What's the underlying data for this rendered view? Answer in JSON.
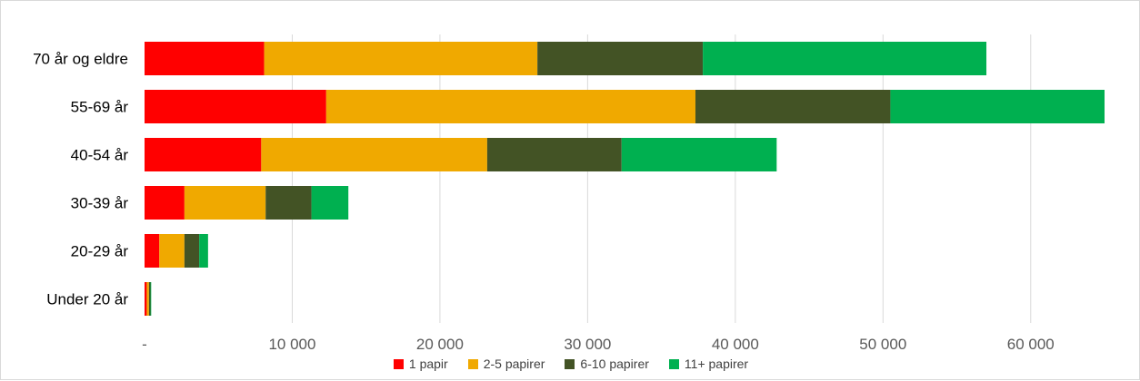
{
  "chart_data": {
    "type": "bar",
    "orientation": "horizontal",
    "stacked": true,
    "categories": [
      "70 år og eldre",
      "55-69 år",
      "40-54 år",
      "30-39 år",
      "20-29 år",
      "Under 20 år"
    ],
    "series": [
      {
        "name": "1 papir",
        "color": "#ff0000",
        "values": [
          8100,
          12300,
          7900,
          2700,
          1000,
          150
        ]
      },
      {
        "name": "2-5 papirer",
        "color": "#f0a900",
        "values": [
          18500,
          25000,
          15300,
          5500,
          1700,
          150
        ]
      },
      {
        "name": "6-10 papirer",
        "color": "#435325",
        "values": [
          11200,
          13200,
          9100,
          3100,
          1000,
          100
        ]
      },
      {
        "name": "11+ papirer",
        "color": "#00b050",
        "values": [
          19200,
          14500,
          10500,
          2500,
          600,
          50
        ]
      }
    ],
    "xlim": [
      0,
      65000
    ],
    "xticks": [
      0,
      10000,
      20000,
      30000,
      40000,
      50000,
      60000
    ],
    "xtick_labels": [
      "-",
      "10 000",
      "20 000",
      "30 000",
      "40 000",
      "50 000",
      "60 000"
    ],
    "grid": "vertical",
    "legend": "bottom"
  }
}
